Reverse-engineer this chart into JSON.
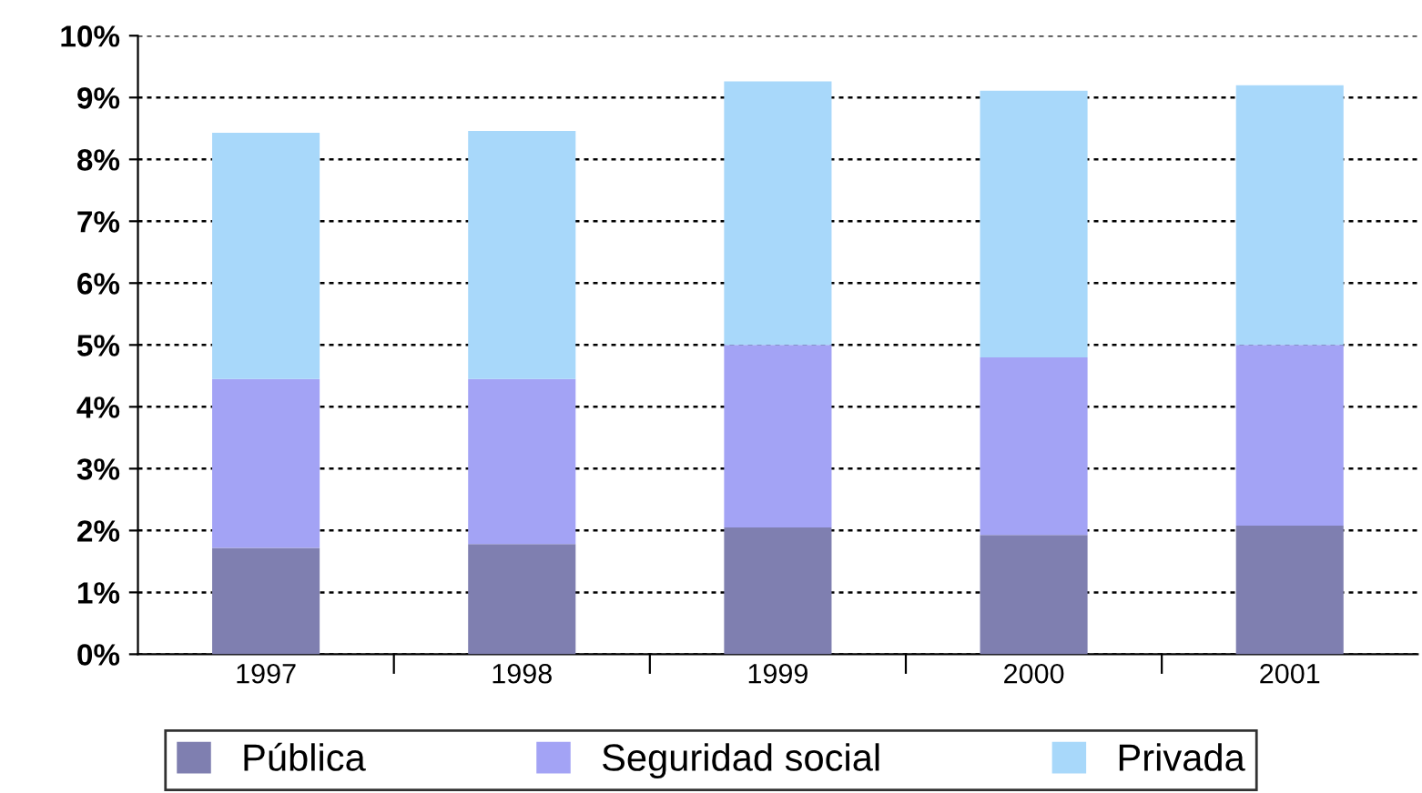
{
  "chart_data": {
    "type": "bar",
    "stacked": true,
    "categories": [
      "1997",
      "1998",
      "1999",
      "2000",
      "2001"
    ],
    "series": [
      {
        "name": "Pública",
        "color": "#7f7fb0",
        "values": [
          1.72,
          1.78,
          2.05,
          1.93,
          2.08
        ]
      },
      {
        "name": "Seguridad social",
        "color": "#a3a3f5",
        "values": [
          2.73,
          2.67,
          2.95,
          2.87,
          2.92
        ]
      },
      {
        "name": "Privada",
        "color": "#a8d8fa",
        "values": [
          3.98,
          4.01,
          4.26,
          4.31,
          4.2
        ]
      }
    ],
    "ylim": [
      0,
      10
    ],
    "yticks": [
      {
        "value": 0,
        "label": "0%"
      },
      {
        "value": 1,
        "label": "1%"
      },
      {
        "value": 2,
        "label": "2%"
      },
      {
        "value": 3,
        "label": "3%"
      },
      {
        "value": 4,
        "label": "4%"
      },
      {
        "value": 5,
        "label": "5%"
      },
      {
        "value": 6,
        "label": "6%"
      },
      {
        "value": 7,
        "label": "7%"
      },
      {
        "value": 8,
        "label": "8%"
      },
      {
        "value": 9,
        "label": "9%"
      },
      {
        "value": 10,
        "label": "10%"
      }
    ],
    "grid": "y",
    "legend": "bottom"
  }
}
